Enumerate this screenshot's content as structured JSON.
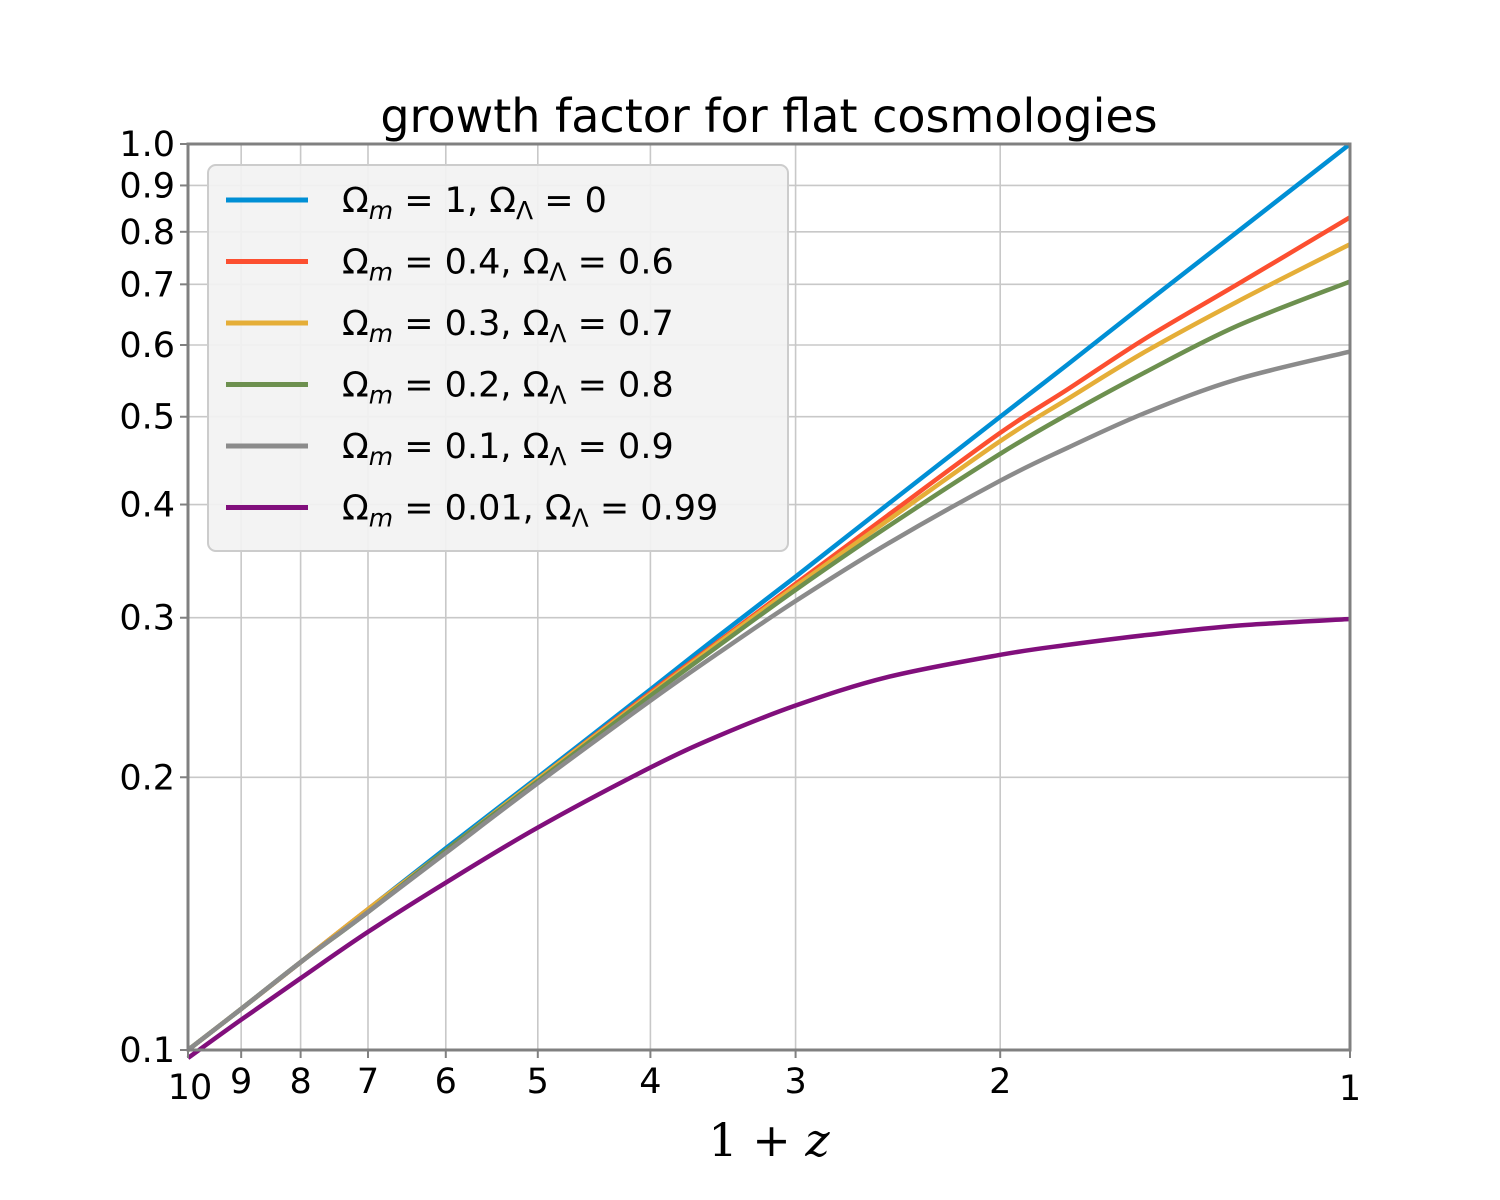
{
  "chart_data": {
    "type": "line",
    "title": "growth factor for flat cosmologies",
    "xlabel": "1 + z",
    "ylabel": "",
    "xscale": "log",
    "xaxis_inverted": true,
    "yscale": "log",
    "xlim": [
      10,
      1
    ],
    "ylim": [
      0.1,
      1.0
    ],
    "x_ticks": [
      "10",
      "9",
      "8",
      "7",
      "6",
      "5",
      "4",
      "3",
      "2",
      "1"
    ],
    "y_ticks": [
      "0.1",
      "0.2",
      "0.3",
      "0.4",
      "0.5",
      "0.6",
      "0.7",
      "0.8",
      "0.9",
      "1.0"
    ],
    "grid": true,
    "legend_position": "top-left",
    "x": [
      10,
      9,
      8,
      7,
      6,
      5,
      4,
      3.5,
      3,
      2.5,
      2,
      1.75,
      1.5,
      1.25,
      1
    ],
    "series": [
      {
        "name": "Ωm = 1, ΩΛ = 0",
        "color": "#008fd5",
        "values": [
          0.1,
          0.111,
          0.125,
          0.143,
          0.167,
          0.2,
          0.25,
          0.286,
          0.333,
          0.4,
          0.5,
          0.571,
          0.667,
          0.8,
          1.0
        ]
      },
      {
        "name": "Ωm = 0.4, ΩΛ = 0.6",
        "color": "#fc4f30",
        "values": [
          0.1,
          0.111,
          0.125,
          0.143,
          0.166,
          0.199,
          0.248,
          0.282,
          0.327,
          0.389,
          0.48,
          0.536,
          0.61,
          0.7,
          0.83
        ]
      },
      {
        "name": "Ωm = 0.3, ΩΛ = 0.7",
        "color": "#e5ae38",
        "values": [
          0.1,
          0.111,
          0.125,
          0.143,
          0.166,
          0.199,
          0.247,
          0.281,
          0.325,
          0.384,
          0.47,
          0.523,
          0.59,
          0.67,
          0.775
        ]
      },
      {
        "name": "Ωm = 0.2, ΩΛ = 0.8",
        "color": "#6d904f",
        "values": [
          0.1,
          0.111,
          0.125,
          0.142,
          0.166,
          0.198,
          0.246,
          0.279,
          0.322,
          0.378,
          0.455,
          0.503,
          0.56,
          0.63,
          0.705
        ]
      },
      {
        "name": "Ωm = 0.1, ΩΛ = 0.9",
        "color": "#8b8b8b",
        "values": [
          0.1,
          0.111,
          0.125,
          0.142,
          0.165,
          0.197,
          0.243,
          0.274,
          0.313,
          0.362,
          0.425,
          0.462,
          0.505,
          0.55,
          0.59
        ]
      },
      {
        "name": "Ωm = 0.01, ΩΛ = 0.99",
        "color": "#810f7c",
        "values": [
          0.098,
          0.108,
          0.12,
          0.135,
          0.153,
          0.176,
          0.205,
          0.222,
          0.24,
          0.258,
          0.273,
          0.28,
          0.287,
          0.294,
          0.299
        ]
      }
    ]
  }
}
